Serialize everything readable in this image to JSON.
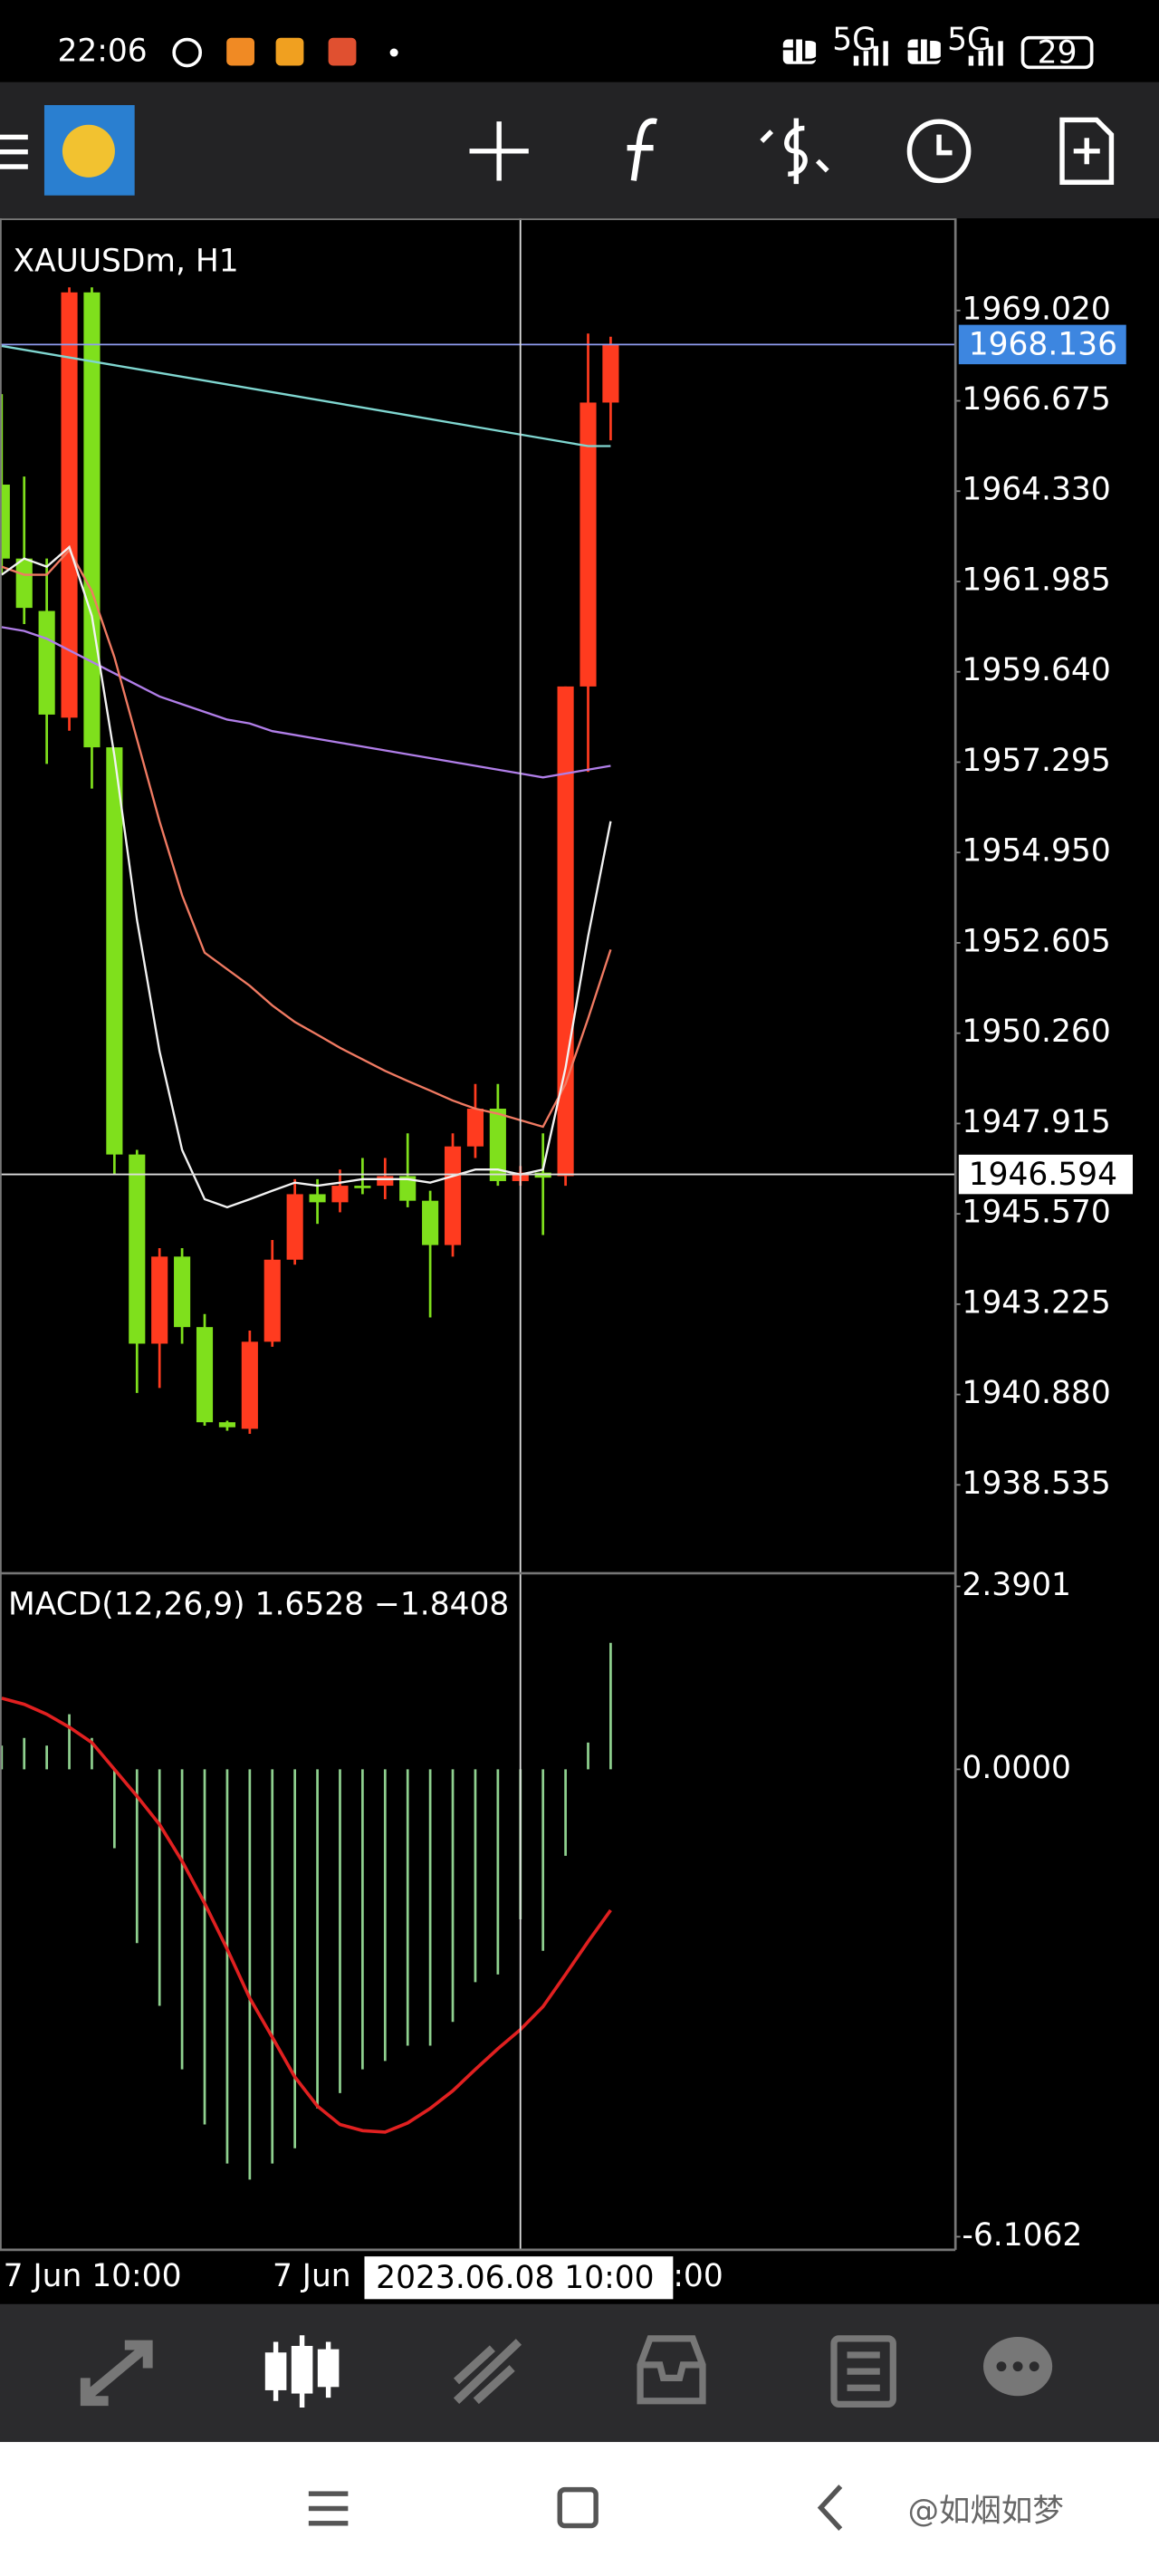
{
  "status_bar": {
    "time": "22:06",
    "hd": [
      "HD",
      "HD"
    ],
    "network": [
      "5G",
      "5G"
    ],
    "battery": "29"
  },
  "chart_data": [
    {
      "type": "candlestick",
      "title": "XAUUSDm, H1",
      "up_color": "#ff3b1f",
      "down_color": "#7fe01c",
      "open": [
        1964.5,
        1962.58,
        1961.22,
        1958.45,
        1969.49,
        1957.68,
        1947.11,
        1942.2,
        1944.46,
        1942.63,
        1940.16,
        1939.99,
        1942.25,
        1944.38,
        1946.08,
        1945.87,
        1946.3,
        1946.3,
        1946.55,
        1945.91,
        1944.76,
        1947.32,
        1948.3,
        1946.42,
        1946.64,
        1946.55,
        1959.26,
        1966.63
      ],
      "high": [
        1966.85,
        1964.71,
        1962.58,
        1969.62,
        1969.62,
        1957.68,
        1947.23,
        1944.68,
        1944.68,
        1942.97,
        1940.2,
        1942.54,
        1944.89,
        1946.47,
        1946.47,
        1946.72,
        1947.02,
        1947.02,
        1947.66,
        1946.17,
        1947.66,
        1948.94,
        1948.94,
        1946.81,
        1947.66,
        1959.26,
        1968.42,
        1968.34
      ],
      "low": [
        1962.16,
        1960.88,
        1957.25,
        1958.11,
        1956.61,
        1946.59,
        1940.92,
        1941.05,
        1942.2,
        1940.07,
        1939.94,
        1939.86,
        1942.12,
        1944.25,
        1945.31,
        1945.61,
        1946.08,
        1945.95,
        1945.74,
        1942.88,
        1944.46,
        1947.02,
        1946.3,
        1946.3,
        1945.02,
        1946.3,
        1957.04,
        1965.65
      ],
      "close": [
        1962.58,
        1961.3,
        1958.53,
        1969.49,
        1957.68,
        1947.11,
        1942.2,
        1944.46,
        1942.63,
        1940.16,
        1940.03,
        1942.25,
        1944.38,
        1946.08,
        1945.87,
        1946.3,
        1946.25,
        1946.55,
        1945.91,
        1944.76,
        1947.32,
        1948.3,
        1946.42,
        1946.64,
        1946.51,
        1959.26,
        1966.63,
        1968.13
      ],
      "lines": [
        {
          "color": "#7fd6d0",
          "values": [
            1968.1,
            1968.0,
            1967.9,
            1967.8,
            1967.7,
            1967.6,
            1967.5,
            1967.4,
            1967.3,
            1967.2,
            1967.1,
            1967.0,
            1966.9,
            1966.8,
            1966.7,
            1966.6,
            1966.5,
            1966.4,
            1966.3,
            1966.2,
            1966.1,
            1966.0,
            1965.9,
            1965.8,
            1965.7,
            1965.6,
            1965.5,
            1965.5
          ]
        },
        {
          "color": "#b07ee8",
          "values": [
            1960.8,
            1960.7,
            1960.5,
            1960.2,
            1959.9,
            1959.6,
            1959.3,
            1959.0,
            1958.8,
            1958.6,
            1958.4,
            1958.3,
            1958.1,
            1958.0,
            1957.9,
            1957.8,
            1957.7,
            1957.6,
            1957.5,
            1957.4,
            1957.3,
            1957.2,
            1957.1,
            1957.0,
            1956.9,
            1957.0,
            1957.1,
            1957.2
          ]
        },
        {
          "color": "#f07a62",
          "values": [
            1962.37,
            1962.16,
            1962.16,
            1962.8,
            1961.73,
            1960.02,
            1957.89,
            1955.76,
            1953.84,
            1952.35,
            1951.92,
            1951.49,
            1950.98,
            1950.55,
            1950.22,
            1949.88,
            1949.58,
            1949.28,
            1949.02,
            1948.77,
            1948.51,
            1948.3,
            1948.17,
            1948.0,
            1947.83,
            1948.94,
            1950.64,
            1952.43
          ]
        },
        {
          "color": "#f2f2f2",
          "values": [
            1962.16,
            1962.58,
            1962.37,
            1962.88,
            1961.09,
            1957.46,
            1953.2,
            1949.79,
            1947.23,
            1945.95,
            1945.74,
            1945.95,
            1946.17,
            1946.38,
            1946.3,
            1946.38,
            1946.47,
            1946.47,
            1946.47,
            1946.38,
            1946.55,
            1946.72,
            1946.72,
            1946.59,
            1946.72,
            1949.36,
            1952.77,
            1955.76
          ]
        }
      ],
      "bid": 1968.136,
      "bid_color": "#3d86e0",
      "crosshair_price": 1946.594,
      "crosshair_time": "2023.06.08 10:00",
      "x_labels": [
        "7 Jun 10:00",
        "7 Jun",
        ":00"
      ],
      "ylim": [
        1936.24,
        1971.41
      ],
      "yticks": [
        {
          "value": 1969.02,
          "label": "1969.020"
        },
        1966.675,
        {
          "value": 1964.33,
          "label": "1964.330"
        },
        1961.985,
        {
          "value": 1959.64,
          "label": "1959.640"
        },
        1957.295,
        {
          "value": 1954.95,
          "label": "1954.950"
        },
        1952.605,
        {
          "value": 1950.26,
          "label": "1950.260"
        },
        1947.915,
        {
          "value": 1945.57,
          "label": "1945.570"
        },
        1943.225,
        {
          "value": 1940.88,
          "label": "1940.880"
        },
        1938.535
      ]
    },
    {
      "type": "macd",
      "title": "MACD(12,26,9) 1.6528 −1.8408",
      "histogram": {
        "color": "#8fd18f",
        "values": [
          0.31,
          0.41,
          0.31,
          0.72,
          0.41,
          -1.03,
          -2.27,
          -3.09,
          -3.92,
          -4.64,
          -5.15,
          -5.36,
          -5.15,
          -4.95,
          -4.43,
          -4.23,
          -3.92,
          -3.81,
          -3.61,
          -3.61,
          -3.3,
          -2.78,
          -2.68,
          -1.96,
          -2.37,
          -1.13,
          0.35,
          1.6528
        ]
      },
      "signal": {
        "color": "#e02020",
        "values": [
          0.93,
          0.85,
          0.72,
          0.55,
          0.35,
          0.0,
          -0.35,
          -0.72,
          -1.2,
          -1.75,
          -2.35,
          -2.99,
          -3.5,
          -4.02,
          -4.4,
          -4.64,
          -4.72,
          -4.74,
          -4.62,
          -4.43,
          -4.2,
          -3.92,
          -3.65,
          -3.4,
          -3.1,
          -2.68,
          -2.25,
          -1.8408
        ]
      },
      "ylim": [
        -6.1062,
        2.3901
      ],
      "yticks": [
        2.3901,
        {
          "value": 0,
          "label": "0.0000"
        },
        -6.1062
      ]
    }
  ],
  "watermark": "@如烟如梦"
}
